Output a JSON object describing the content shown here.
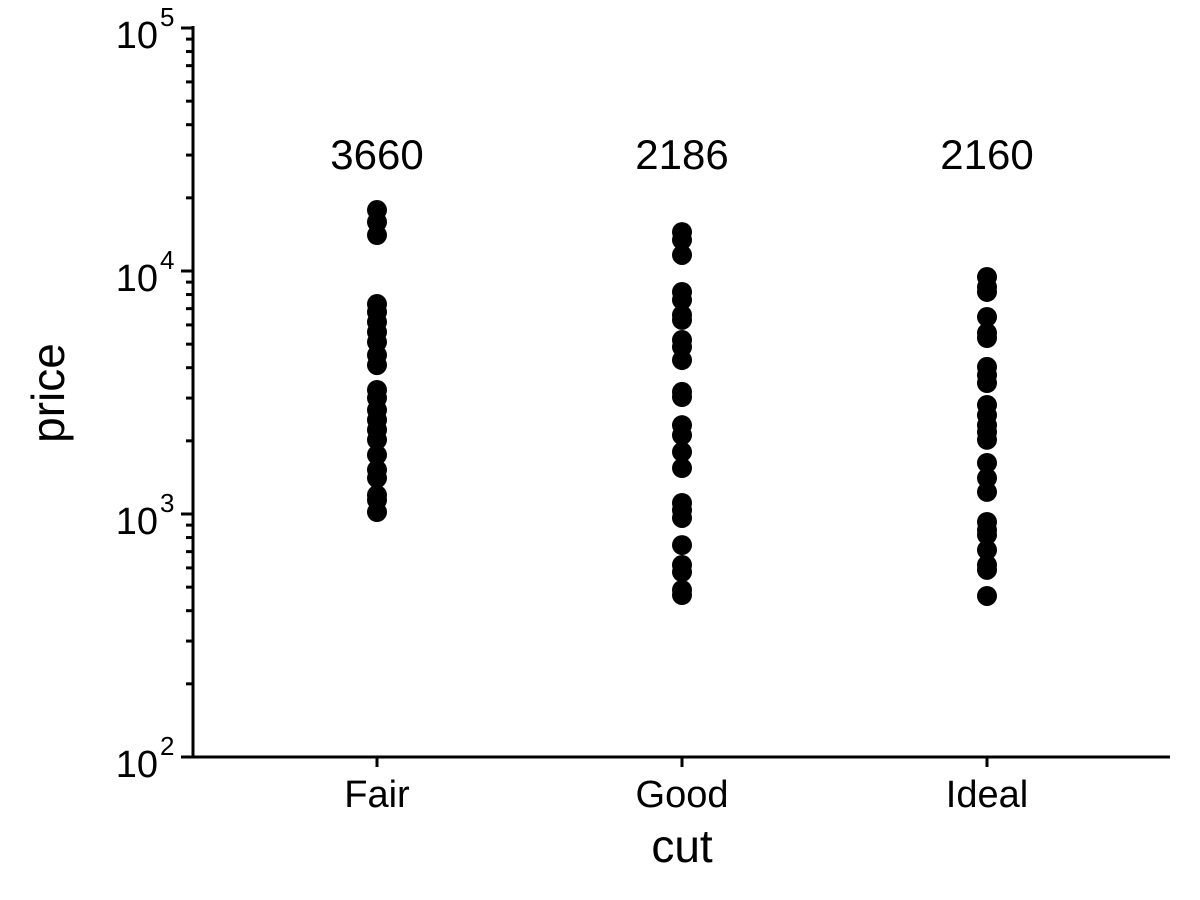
{
  "chart_data": {
    "type": "scatter",
    "title": "",
    "xlabel": "cut",
    "ylabel": "price",
    "y_scale": "log10",
    "ylim": [
      100,
      100000
    ],
    "y_ticks": [
      {
        "base": "10",
        "exp": "2"
      },
      {
        "base": "10",
        "exp": "3"
      },
      {
        "base": "10",
        "exp": "4"
      },
      {
        "base": "10",
        "exp": "5"
      }
    ],
    "categories": [
      "Fair",
      "Good",
      "Ideal"
    ],
    "grid": false,
    "color": "#000000",
    "annotations": [
      {
        "category": "Fair",
        "y": 30000,
        "text": "3660"
      },
      {
        "category": "Good",
        "y": 30000,
        "text": "2186"
      },
      {
        "category": "Ideal",
        "y": 30000,
        "text": "2160"
      }
    ],
    "series": [
      {
        "category": "Fair",
        "values": [
          17820,
          15910,
          14060,
          7313,
          6780,
          6170,
          5610,
          5100,
          4510,
          4100,
          3240,
          3000,
          2680,
          2440,
          2220,
          2020,
          1750,
          1520,
          1406,
          1197,
          1142,
          1019
        ]
      },
      {
        "category": "Good",
        "values": [
          14460,
          13420,
          11640,
          8200,
          7600,
          6590,
          6290,
          5200,
          4870,
          4300,
          3180,
          3030,
          2320,
          2110,
          1800,
          1546,
          1110,
          1038,
          963,
          745,
          617,
          577,
          487,
          464
        ]
      },
      {
        "category": "Ideal",
        "values": [
          9450,
          8590,
          8200,
          6470,
          5560,
          5300,
          4030,
          3730,
          3460,
          2810,
          2550,
          2320,
          2175,
          2020,
          1622,
          1406,
          1233,
          927,
          859,
          820,
          711,
          617,
          589,
          460
        ]
      }
    ]
  }
}
